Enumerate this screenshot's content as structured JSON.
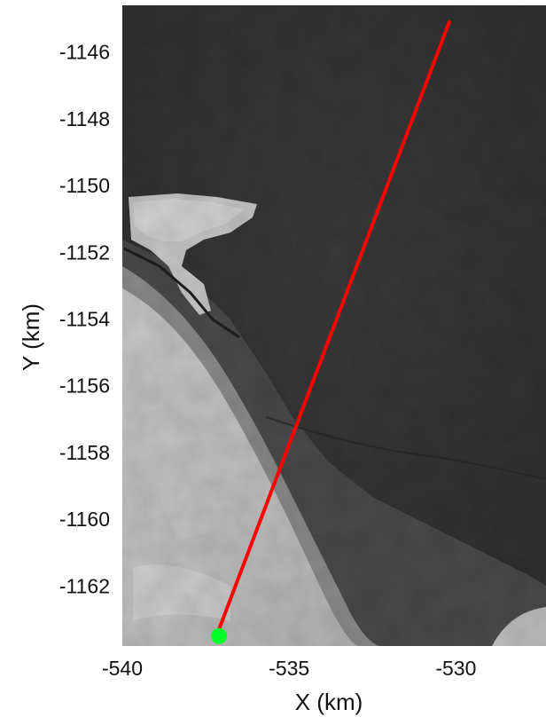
{
  "chart_data": {
    "type": "scatter",
    "title": "",
    "xlabel": "X (km)",
    "ylabel": "Y (km)",
    "xlim": [
      -540.0,
      -527.3
    ],
    "ylim": [
      -1163.8,
      -1144.6
    ],
    "xticks": [
      -540,
      -535,
      -530
    ],
    "yticks": [
      -1146,
      -1148,
      -1150,
      -1152,
      -1154,
      -1156,
      -1158,
      -1160,
      -1162
    ],
    "xtick_labels": [
      "-540",
      "-535",
      "-530"
    ],
    "ytick_labels": [
      "-1146",
      "-1148",
      "-1150",
      "-1152",
      "-1154",
      "-1156",
      "-1158",
      "-1160",
      "-1162"
    ],
    "grid": false,
    "background": "grayscale satellite image",
    "series": [
      {
        "type": "line",
        "color": "#ff0000",
        "x": [
          -537.1,
          -530.2
        ],
        "y": [
          -1163.3,
          -1145.1
        ]
      },
      {
        "type": "point",
        "color": "#00ff2a",
        "marker": "circle",
        "x": [
          -537.1
        ],
        "y": [
          -1163.5
        ]
      }
    ]
  }
}
